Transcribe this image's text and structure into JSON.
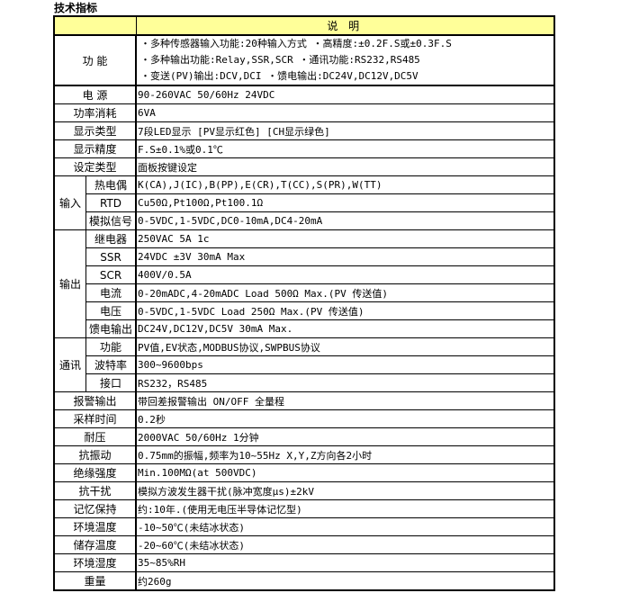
{
  "title": "技术指标",
  "header": {
    "col1": "",
    "col2": "说 明"
  },
  "function": {
    "label": "功 能",
    "lines": [
      "・多种传感器输入功能:20种输入方式  ・高精度:±0.2F.S或±0.3F.S",
      "・多种输出功能:Relay,SSR,SCR  ・通讯功能:RS232,RS485",
      "・变送(PV)输出:DCV,DCI  ・馈电输出:DC24V,DC12V,DC5V"
    ]
  },
  "rows_top": [
    {
      "label": "电 源",
      "value": "90-260VAC 50/60Hz 24VDC"
    },
    {
      "label": "功率消耗",
      "value": "6VA"
    },
    {
      "label": "显示类型",
      "value": "7段LED显示 [PV显示红色] [CH显示绿色]"
    },
    {
      "label": "显示精度",
      "value": "F.S±0.1%或0.1℃"
    },
    {
      "label": "设定类型",
      "value": "面板按键设定"
    }
  ],
  "input": {
    "label": "输入",
    "items": [
      {
        "label": "热电偶",
        "value": "K(CA),J(IC),B(PP),E(CR),T(CC),S(PR),W(TT)"
      },
      {
        "label": "RTD",
        "value": "Cu50Ω,Pt100Ω,Pt100.1Ω"
      },
      {
        "label": "模拟信号",
        "value": "0-5VDC,1-5VDC,DC0-10mA,DC4-20mA"
      }
    ]
  },
  "output": {
    "label": "输出",
    "items": [
      {
        "label": "继电器",
        "value": "250VAC 5A 1c"
      },
      {
        "label": "SSR",
        "value": "24VDC  ±3V 30mA Max"
      },
      {
        "label": "SCR",
        "value": "400V/0.5A"
      },
      {
        "label": "电流",
        "value": "0-20mADC,4-20mADC Load 500Ω Max.(PV 传送值)"
      },
      {
        "label": "电压",
        "value": "0-5VDC,1-5VDC Load 250Ω Max.(PV 传送值)"
      },
      {
        "label": "馈电输出",
        "value": "DC24V,DC12V,DC5V 30mA Max."
      }
    ]
  },
  "comm": {
    "label": "通讯",
    "items": [
      {
        "label": "功能",
        "value": "PV值,EV状态,MODBUS协议,SWPBUS协议"
      },
      {
        "label": "波特率",
        "value": "300~9600bps"
      },
      {
        "label": "接口",
        "value": "RS232，RS485"
      }
    ]
  },
  "rows_bottom": [
    {
      "label": "报警输出",
      "value": "带回差报警输出 ON/OFF 全量程"
    },
    {
      "label": "采样时间",
      "value": "0.2秒"
    },
    {
      "label": "耐压",
      "value": "2000VAC 50/60Hz 1分钟"
    },
    {
      "label": "抗振动",
      "value": "0.75mm的振幅,频率为10~55Hz X,Y,Z方向各2小时"
    },
    {
      "label": "绝缘强度",
      "value": "Min.100MΩ(at 500VDC)"
    },
    {
      "label": "抗干扰",
      "value": "模拟方波发生器干扰(脉冲宽度μs)±2kV"
    },
    {
      "label": "记忆保持",
      "value": "约:10年.(使用无电压半导体记忆型)"
    },
    {
      "label": "环境温度",
      "value": "-10~50℃(未结冰状态)"
    },
    {
      "label": "储存温度",
      "value": "-20~60℃(未结冰状态)"
    },
    {
      "label": "环境湿度",
      "value": "35~85%RH"
    },
    {
      "label": "重量",
      "value": "约260g"
    }
  ],
  "colors": {
    "header_bg": "#FFFF99",
    "border": "#000000"
  }
}
